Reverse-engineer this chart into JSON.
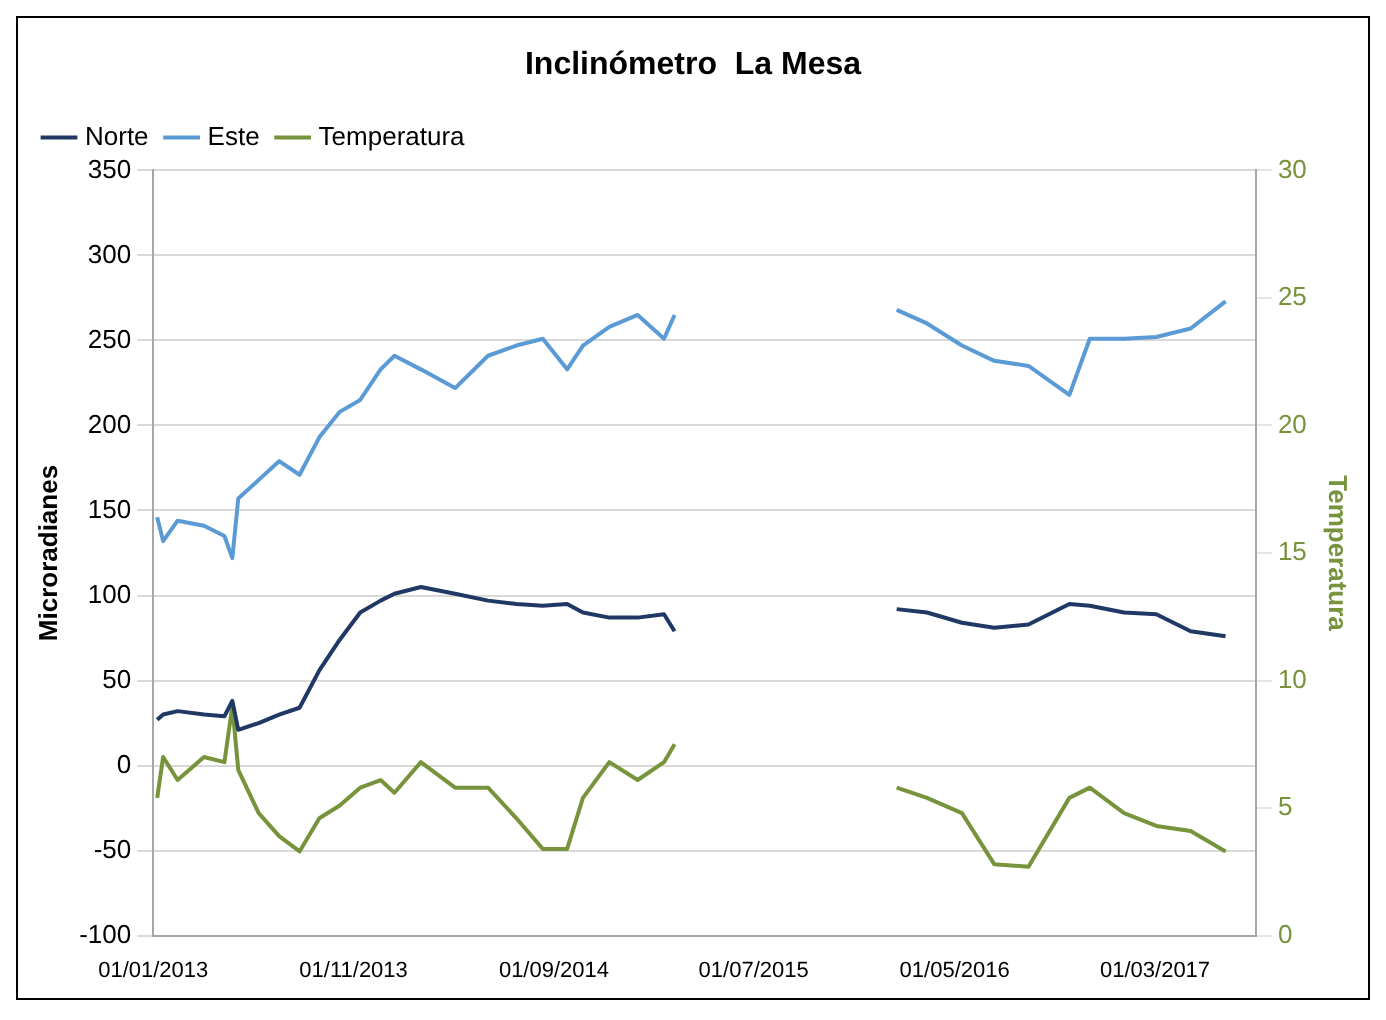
{
  "chart_data": {
    "type": "line",
    "title": "Inclinómetro  La Mesa",
    "ylabel": "Microradianes",
    "y2label": "Temperatura",
    "x": [
      "2013-01-07",
      "2013-01-16",
      "2013-02-07",
      "2013-03-19",
      "2013-04-19",
      "2013-05-01",
      "2013-05-10",
      "2013-06-10",
      "2013-07-11",
      "2013-08-11",
      "2013-09-10",
      "2013-10-11",
      "2013-11-11",
      "2013-12-12",
      "2014-01-02",
      "2014-02-11",
      "2014-04-04",
      "2014-05-24",
      "2014-07-06",
      "2014-08-15",
      "2014-09-21",
      "2014-10-15",
      "2014-11-24",
      "2015-01-06",
      "2015-02-15",
      "2015-03-03",
      "2015-08-01",
      "2016-02-03",
      "2016-03-20",
      "2016-05-12",
      "2016-06-30",
      "2016-08-21",
      "2016-10-22",
      "2016-11-22",
      "2017-01-13",
      "2017-03-03",
      "2017-04-24",
      "2017-06-16"
    ],
    "series": [
      {
        "name": "Norte",
        "color": "#1f3864",
        "values": [
          27,
          30,
          32,
          30,
          29,
          38,
          21,
          25,
          30,
          34,
          56,
          74,
          90,
          97,
          101,
          105,
          101,
          97,
          95,
          94,
          95,
          90,
          87,
          87,
          89,
          79,
          null,
          92,
          90,
          84,
          81,
          83,
          95,
          94,
          90,
          89,
          79,
          76
        ]
      },
      {
        "name": "Este",
        "color": "#5b9bd5",
        "values": [
          146,
          132,
          144,
          141,
          135,
          122,
          157,
          168,
          179,
          171,
          193,
          208,
          215,
          233,
          241,
          233,
          222,
          241,
          247,
          251,
          233,
          247,
          258,
          265,
          251,
          265,
          null,
          268,
          260,
          247,
          238,
          235,
          218,
          251,
          251,
          252,
          257,
          273
        ]
      },
      {
        "name": "Temperatura",
        "color": "#77933c",
        "axis": "y2",
        "values": [
          5.4,
          7.0,
          6.1,
          7.0,
          6.8,
          9.0,
          6.5,
          4.8,
          3.9,
          3.3,
          4.6,
          5.1,
          5.8,
          6.1,
          5.6,
          6.8,
          5.8,
          5.8,
          4.6,
          3.4,
          3.4,
          5.4,
          6.8,
          6.1,
          6.8,
          7.5,
          null,
          5.8,
          5.4,
          4.8,
          2.8,
          2.7,
          5.4,
          5.8,
          4.8,
          4.3,
          4.1,
          3.3
        ]
      }
    ],
    "xlim": [
      "2013-01-01",
      "2017-08-01"
    ],
    "xticks": [
      {
        "value": "2013-01-01",
        "label": "01/01/2013"
      },
      {
        "value": "2013-11-01",
        "label": "01/11/2013"
      },
      {
        "value": "2014-09-01",
        "label": "01/09/2014"
      },
      {
        "value": "2015-07-01",
        "label": "01/07/2015"
      },
      {
        "value": "2016-05-01",
        "label": "01/05/2016"
      },
      {
        "value": "2017-03-01",
        "label": "01/03/2017"
      }
    ],
    "ylim": [
      -100,
      350
    ],
    "yticks": [
      -100,
      -50,
      0,
      50,
      100,
      150,
      200,
      250,
      300,
      350
    ],
    "y2lim": [
      0,
      30
    ],
    "y2ticks": [
      0,
      5,
      10,
      15,
      20,
      25,
      30
    ],
    "grid": "y",
    "legend": "top left",
    "marker": "none",
    "line_style": "solid"
  }
}
